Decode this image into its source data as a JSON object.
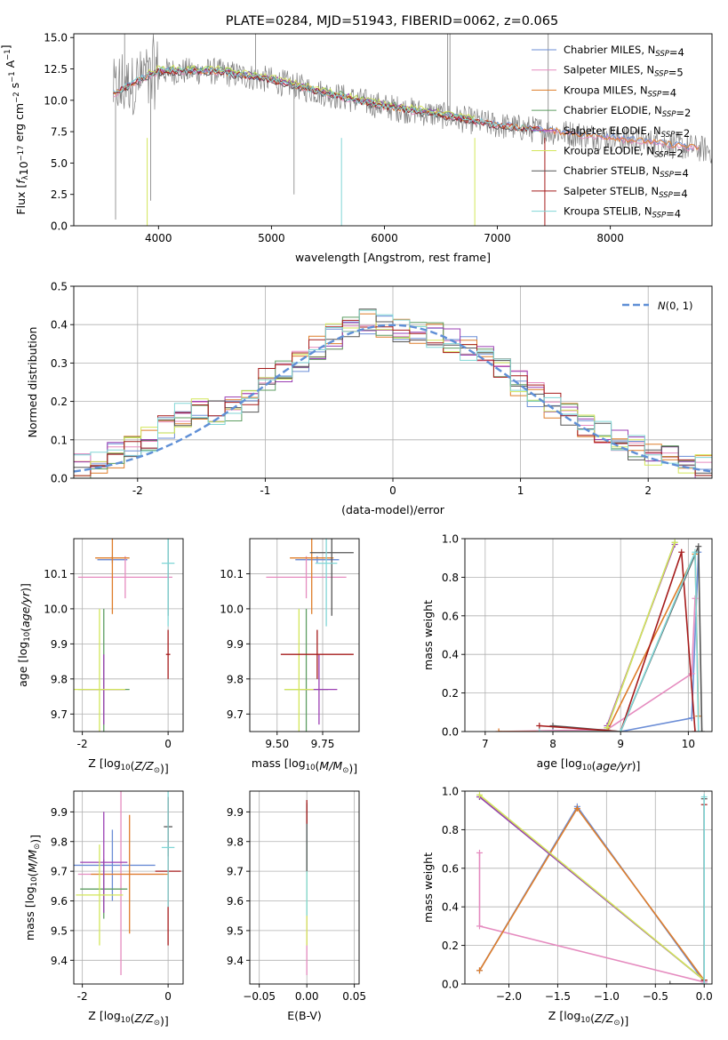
{
  "figure_title": "PLATE=0284, MJD=51943, FIBERID=0062, z=0.065",
  "colors": {
    "chabrier_miles": "#6b8dd6",
    "salpeter_miles": "#e58bbf",
    "kroupa_miles": "#de7d2a",
    "chabrier_elodie": "#5e9e62",
    "salpeter_elodie": "#9b3fb3",
    "kroupa_elodie": "#d3e65a",
    "chabrier_stelib": "#555555",
    "salpeter_stelib": "#a51b1b",
    "kroupa_stelib": "#80d6d6",
    "data_spectrum": "#7f7f7f",
    "normal_curve": "#5f8fd6"
  },
  "chart_data": [
    {
      "id": "spectrum",
      "type": "line",
      "title": "PLATE=0284, MJD=51943, FIBERID=0062, z=0.065",
      "xlabel": "wavelength [Angstrom, rest frame]",
      "ylabel": "Flux [fλ10⁻¹⁷ erg cm⁻² s⁻¹ A⁻¹]",
      "xlim": [
        3250,
        8900
      ],
      "ylim": [
        0,
        15.3
      ],
      "xticks": [
        4000,
        5000,
        6000,
        7000,
        8000
      ],
      "yticks": [
        0.0,
        2.5,
        5.0,
        7.5,
        10.0,
        12.5,
        15.0
      ],
      "legend_placement": "top-right",
      "legend": [
        "Chabrier MILES, N_SSP=4",
        "Salpeter MILES, N_SSP=5",
        "Kroupa MILES, N_SSP=4",
        "Chabrier ELODIE, N_SSP=2",
        "Salpeter ELODIE, N_SSP=2",
        "Kroupa ELODIE, N_SSP=2",
        "Chabrier STELIB, N_SSP=4",
        "Salpeter STELIB, N_SSP=4",
        "Kroupa STELIB, N_SSP=4"
      ],
      "data_trend": {
        "x": [
          3600,
          3800,
          4000,
          4500,
          5000,
          5500,
          6000,
          6500,
          7000,
          7500,
          8000,
          8500,
          8900
        ],
        "y": [
          10.5,
          11.5,
          12.3,
          12.3,
          11.6,
          10.5,
          9.5,
          8.8,
          8.0,
          7.5,
          7.0,
          6.5,
          6.0
        ]
      },
      "model_range_elodie": [
        3900,
        6800
      ],
      "grid": false
    },
    {
      "id": "residuals",
      "type": "line",
      "xlabel": "(data-model)/error",
      "ylabel": "Normed distribution",
      "xlim": [
        -2.5,
        2.5
      ],
      "ylim": [
        0,
        0.5
      ],
      "xticks": [
        -2,
        -1,
        0,
        1,
        2
      ],
      "yticks": [
        0.0,
        0.1,
        0.2,
        0.3,
        0.4,
        0.5
      ],
      "legend": [
        "N(0,1)"
      ],
      "legend_placement": "top-right",
      "grid": true,
      "hist_base": [
        0.03,
        0.04,
        0.06,
        0.08,
        0.1,
        0.13,
        0.16,
        0.18,
        0.17,
        0.18,
        0.2,
        0.26,
        0.28,
        0.3,
        0.34,
        0.37,
        0.4,
        0.41,
        0.4,
        0.39,
        0.38,
        0.37,
        0.36,
        0.34,
        0.32,
        0.28,
        0.25,
        0.22,
        0.19,
        0.17,
        0.14,
        0.12,
        0.1,
        0.08,
        0.06,
        0.05,
        0.04,
        0.03
      ]
    },
    {
      "id": "age_vs_Z",
      "type": "scatter",
      "xlabel": "Z [log10(Z/Z⊙)]",
      "ylabel": "age  [log10(age/yr)]",
      "xlim": [
        -2.2,
        0.35
      ],
      "ylim": [
        9.65,
        10.2
      ],
      "xticks": [
        -2,
        0
      ],
      "yticks": [
        9.7,
        9.8,
        9.9,
        10.0,
        10.1
      ],
      "points": [
        {
          "model": "Chabrier MILES",
          "x": -1.3,
          "y": 10.14,
          "xerr": 0.35,
          "yerr": 0.01
        },
        {
          "model": "Salpeter MILES",
          "x": -1.0,
          "y": 10.09,
          "xerr": 1.1,
          "yerr": 0.06
        },
        {
          "model": "Kroupa MILES",
          "x": -1.3,
          "y": 10.145,
          "xerr": 0.4,
          "yerr": 0.16
        },
        {
          "model": "Chabrier ELODIE",
          "x": -1.5,
          "y": 9.77,
          "xerr": 0.6,
          "yerr": 0.23
        },
        {
          "model": "Salpeter ELODIE",
          "x": -1.5,
          "y": 9.77,
          "xerr": 0.5,
          "yerr": 0.1
        },
        {
          "model": "Kroupa ELODIE",
          "x": -1.6,
          "y": 9.77,
          "xerr": 0.6,
          "yerr": 0.23
        },
        {
          "model": "Chabrier STELIB",
          "x": 0.0,
          "y": 10.16,
          "xerr": 0.0,
          "yerr": 0.18
        },
        {
          "model": "Salpeter STELIB",
          "x": 0.0,
          "y": 9.87,
          "xerr": 0.05,
          "yerr": 0.07
        },
        {
          "model": "Kroupa STELIB",
          "x": 0.0,
          "y": 10.13,
          "xerr": 0.15,
          "yerr": 0.18
        }
      ],
      "grid": true
    },
    {
      "id": "age_vs_mass",
      "type": "scatter",
      "xlabel": "mass [log10(M/M⊙)]",
      "ylabel": "",
      "xlim": [
        9.35,
        9.95
      ],
      "ylim": [
        9.65,
        10.2
      ],
      "xticks": [
        9.5,
        9.75
      ],
      "yticks": [
        9.7,
        9.8,
        9.9,
        10.0,
        10.1
      ],
      "points": [
        {
          "model": "Chabrier MILES",
          "x": 9.72,
          "y": 10.14,
          "xerr": 0.12,
          "yerr": 0.01
        },
        {
          "model": "Salpeter MILES",
          "x": 9.66,
          "y": 10.09,
          "xerr": 0.22,
          "yerr": 0.06
        },
        {
          "model": "Kroupa MILES",
          "x": 9.69,
          "y": 10.145,
          "xerr": 0.12,
          "yerr": 0.16
        },
        {
          "model": "Chabrier ELODIE",
          "x": 9.66,
          "y": 9.77,
          "xerr": 0.12,
          "yerr": 0.23
        },
        {
          "model": "Salpeter ELODIE",
          "x": 9.73,
          "y": 9.77,
          "xerr": 0.1,
          "yerr": 0.1
        },
        {
          "model": "Kroupa ELODIE",
          "x": 9.62,
          "y": 9.77,
          "xerr": 0.08,
          "yerr": 0.23
        },
        {
          "model": "Chabrier STELIB",
          "x": 9.8,
          "y": 10.16,
          "xerr": 0.12,
          "yerr": 0.18
        },
        {
          "model": "Salpeter STELIB",
          "x": 9.72,
          "y": 9.87,
          "xerr": 0.2,
          "yerr": 0.07
        },
        {
          "model": "Kroupa STELIB",
          "x": 9.77,
          "y": 10.13,
          "xerr": 0.06,
          "yerr": 0.18
        }
      ],
      "grid": true
    },
    {
      "id": "weight_vs_age",
      "type": "line",
      "xlabel": "age  [log10(age/yr)]",
      "ylabel": "mass weight",
      "xlim": [
        6.7,
        10.35
      ],
      "ylim": [
        0,
        1.0
      ],
      "xticks": [
        7,
        8,
        9,
        10
      ],
      "yticks": [
        0.0,
        0.2,
        0.4,
        0.6,
        0.8,
        1.0
      ],
      "series": [
        {
          "model": "Chabrier MILES",
          "x": [
            8.0,
            9.0,
            10.05,
            10.15
          ],
          "y": [
            0.0,
            0.0,
            0.07,
            0.93
          ]
        },
        {
          "model": "Salpeter MILES",
          "x": [
            7.2,
            8.8,
            10.05,
            10.1
          ],
          "y": [
            0.0,
            0.01,
            0.3,
            0.69
          ]
        },
        {
          "model": "Kroupa MILES",
          "x": [
            7.2,
            8.8,
            10.1,
            10.15
          ],
          "y": [
            0.0,
            0.0,
            0.92,
            0.08
          ]
        },
        {
          "model": "Chabrier ELODIE",
          "x": [
            8.8,
            9.8
          ],
          "y": [
            0.02,
            0.98
          ]
        },
        {
          "model": "Salpeter ELODIE",
          "x": [
            8.8,
            9.8
          ],
          "y": [
            0.03,
            0.97
          ]
        },
        {
          "model": "Kroupa ELODIE",
          "x": [
            8.8,
            9.8
          ],
          "y": [
            0.02,
            0.98
          ]
        },
        {
          "model": "Chabrier STELIB",
          "x": [
            8.0,
            9.0,
            10.15,
            10.2
          ],
          "y": [
            0.03,
            0.0,
            0.96,
            0.0
          ]
        },
        {
          "model": "Salpeter STELIB",
          "x": [
            7.8,
            9.0,
            9.9,
            10.1
          ],
          "y": [
            0.03,
            0.0,
            0.93,
            0.0
          ]
        },
        {
          "model": "Kroupa STELIB",
          "x": [
            7.8,
            9.0,
            10.1,
            10.15
          ],
          "y": [
            0.0,
            0.0,
            0.93,
            0.0
          ]
        }
      ],
      "grid": true
    },
    {
      "id": "mass_vs_Z",
      "type": "scatter",
      "xlabel": "Z [log10(Z/Z⊙)]",
      "ylabel": "mass [log10(M/M⊙)]",
      "xlim": [
        -2.2,
        0.35
      ],
      "ylim": [
        9.32,
        9.97
      ],
      "xticks": [
        -2,
        0
      ],
      "yticks": [
        9.4,
        9.5,
        9.6,
        9.7,
        9.8,
        9.9
      ],
      "points": [
        {
          "model": "Chabrier MILES",
          "x": -1.3,
          "y": 9.72,
          "xerr": 1.0,
          "yerr": 0.12
        },
        {
          "model": "Salpeter MILES",
          "x": -1.1,
          "y": 9.69,
          "xerr": 1.0,
          "yerr": 0.34
        },
        {
          "model": "Kroupa MILES",
          "x": -0.9,
          "y": 9.69,
          "xerr": 0.9,
          "yerr": 0.2
        },
        {
          "model": "Chabrier ELODIE",
          "x": -1.5,
          "y": 9.64,
          "xerr": 0.55,
          "yerr": 0.1
        },
        {
          "model": "Salpeter ELODIE",
          "x": -1.5,
          "y": 9.73,
          "xerr": 0.55,
          "yerr": 0.17
        },
        {
          "model": "Kroupa ELODIE",
          "x": -1.6,
          "y": 9.62,
          "xerr": 0.55,
          "yerr": 0.17
        },
        {
          "model": "Chabrier STELIB",
          "x": 0.0,
          "y": 9.85,
          "xerr": 0.1,
          "yerr": 0.1
        },
        {
          "model": "Salpeter STELIB",
          "x": 0.0,
          "y": 9.7,
          "xerr": 0.3,
          "yerr": 0.25
        },
        {
          "model": "Kroupa STELIB",
          "x": 0.0,
          "y": 9.78,
          "xerr": 0.15,
          "yerr": 0.2
        }
      ],
      "grid": true
    },
    {
      "id": "mass_vs_EBV",
      "type": "scatter",
      "xlabel": "E(B-V)",
      "ylabel": "",
      "xlim": [
        -0.06,
        0.055
      ],
      "ylim": [
        9.32,
        9.97
      ],
      "xticks": [
        -0.05,
        0.0,
        0.05
      ],
      "xticklabels": [
        "−0.05",
        "0.00",
        "0.05"
      ],
      "yticks": [
        9.4,
        9.5,
        9.6,
        9.7,
        9.8,
        9.9
      ],
      "segments": [
        {
          "model": "Salpeter MILES",
          "y0": 9.35,
          "y1": 9.55
        },
        {
          "model": "Kroupa ELODIE",
          "y0": 9.45,
          "y1": 9.8
        },
        {
          "model": "Kroupa STELIB",
          "y0": 9.55,
          "y1": 9.92
        },
        {
          "model": "Chabrier STELIB",
          "y0": 9.7,
          "y1": 9.93
        },
        {
          "model": "Salpeter STELIB",
          "y0": 9.86,
          "y1": 9.94
        }
      ],
      "grid": true
    },
    {
      "id": "weight_vs_Z",
      "type": "line",
      "xlabel": "Z [log10(Z/Z⊙)]",
      "ylabel": "mass weight",
      "xlim": [
        -2.45,
        0.08
      ],
      "ylim": [
        0,
        1.0
      ],
      "xticks": [
        -2.0,
        -1.5,
        -1.0,
        -0.5,
        0.0
      ],
      "xticklabels": [
        "−2.0",
        "−1.5",
        "−1.0",
        "−0.5",
        "0.0"
      ],
      "yticks": [
        0.0,
        0.2,
        0.4,
        0.6,
        0.8,
        1.0
      ],
      "series": [
        {
          "model": "Chabrier MILES",
          "x": [
            -2.3,
            -1.3,
            0.0
          ],
          "y": [
            0.07,
            0.92,
            0.01
          ]
        },
        {
          "model": "Salpeter MILES",
          "x": [
            -2.3,
            -2.3,
            0.0
          ],
          "y": [
            0.68,
            0.3,
            0.01
          ]
        },
        {
          "model": "Kroupa MILES",
          "x": [
            -2.3,
            -1.3,
            0.0
          ],
          "y": [
            0.07,
            0.91,
            0.02
          ]
        },
        {
          "model": "Chabrier ELODIE",
          "x": [
            -2.3,
            0.0
          ],
          "y": [
            0.97,
            0.02
          ]
        },
        {
          "model": "Salpeter ELODIE",
          "x": [
            -2.3,
            0.0
          ],
          "y": [
            0.97,
            0.02
          ]
        },
        {
          "model": "Kroupa ELODIE",
          "x": [
            -2.3,
            0.0
          ],
          "y": [
            0.98,
            0.02
          ]
        },
        {
          "model": "Chabrier STELIB",
          "x": [
            0.0,
            0.0,
            -0.35
          ],
          "y": [
            0.96,
            0.0,
            0.0
          ]
        },
        {
          "model": "Salpeter STELIB",
          "x": [
            0.0,
            0.0
          ],
          "y": [
            0.93,
            0.02
          ]
        },
        {
          "model": "Kroupa STELIB",
          "x": [
            0.0,
            0.0
          ],
          "y": [
            0.97,
            0.0
          ]
        }
      ],
      "grid": true
    }
  ]
}
